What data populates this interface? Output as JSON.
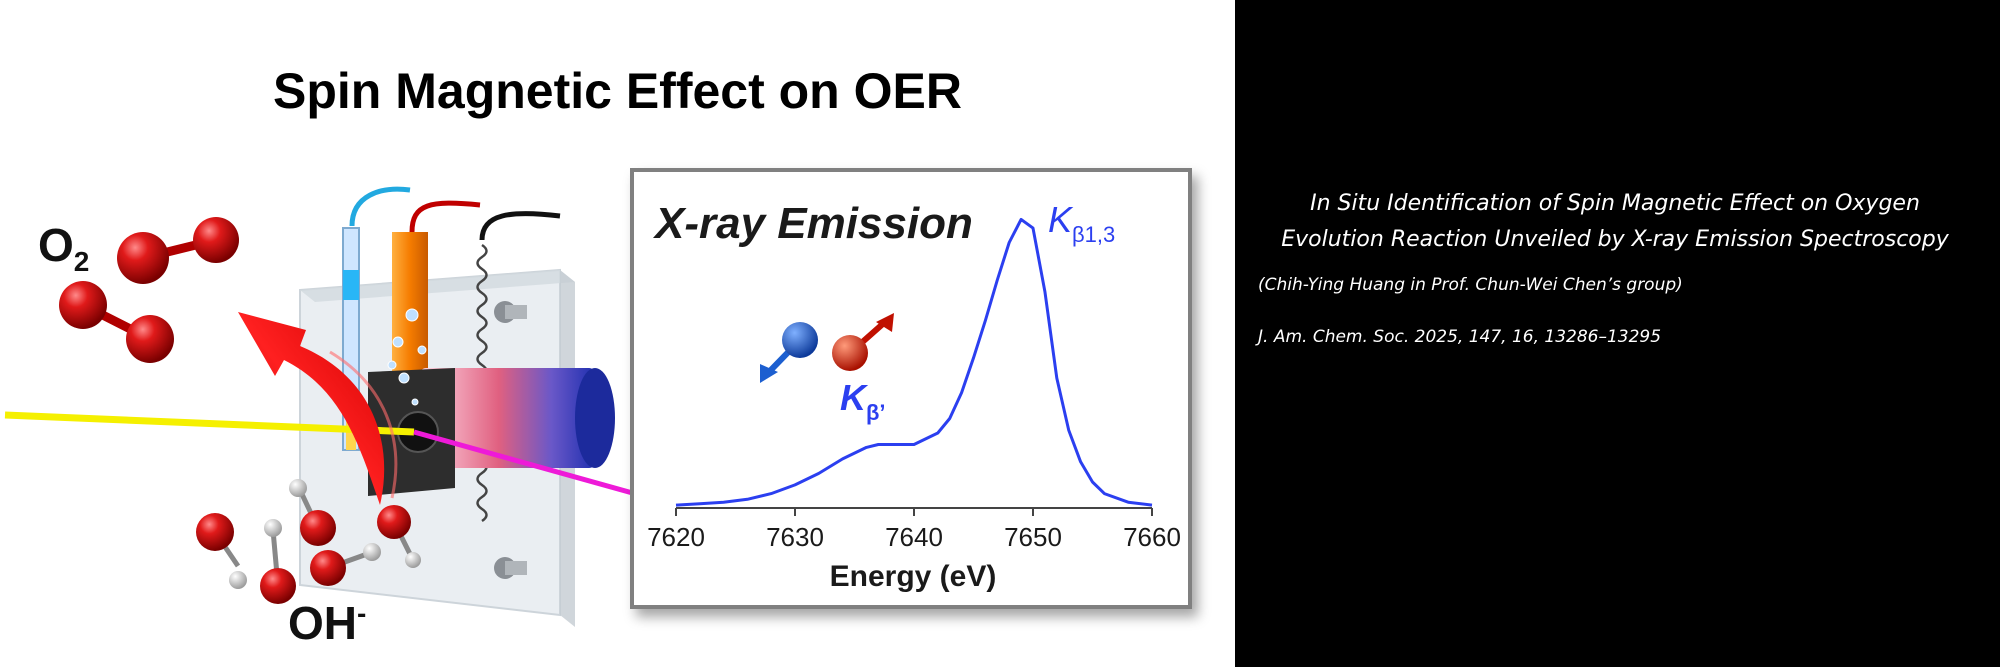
{
  "figure": {
    "title": "Spin Magnetic Effect on OER",
    "o2_label": "O",
    "o2_subscript": "2",
    "oh_label": "OH",
    "oh_superscript": "-"
  },
  "inset": {
    "title": "X-ray Emission",
    "peak_main": "K",
    "peak_main_subscript": "β1,3",
    "peak_satellite": "K",
    "peak_satellite_subscript": "β’"
  },
  "chart_data": {
    "type": "line",
    "title": "X-ray Emission",
    "xlabel": "Energy (eV)",
    "ylabel": "",
    "xlim": [
      7620,
      7660
    ],
    "ylim": [
      0,
      1.05
    ],
    "xticks": [
      7620,
      7630,
      7640,
      7650,
      7660
    ],
    "yticks_shown": false,
    "grid": false,
    "series": [
      {
        "color": "#2b3ff0",
        "x": [
          7620,
          7622,
          7624,
          7626,
          7628,
          7630,
          7632,
          7634,
          7636,
          7637,
          7638,
          7640,
          7642,
          7643,
          7644,
          7645,
          7646,
          7647,
          7648,
          7649,
          7650,
          7651,
          7652,
          7653,
          7654,
          7655,
          7656,
          7658,
          7660
        ],
        "y": [
          0.01,
          0.015,
          0.02,
          0.03,
          0.05,
          0.08,
          0.12,
          0.17,
          0.21,
          0.22,
          0.22,
          0.22,
          0.26,
          0.31,
          0.4,
          0.52,
          0.65,
          0.79,
          0.92,
          1.0,
          0.97,
          0.75,
          0.45,
          0.27,
          0.16,
          0.09,
          0.05,
          0.02,
          0.01
        ]
      }
    ],
    "annotations": [
      "Kβ1,3",
      "Kβ’"
    ]
  },
  "paper": {
    "title_line1": "In Situ Identification of Spin Magnetic Effect on Oxygen",
    "title_line2": "Evolution Reaction Unveiled by X-ray Emission Spectroscopy",
    "author": "(Chih-Ying Huang in Prof. Chun-Wei Chen’s group)",
    "citation": "J. Am. Chem. Soc. 2025, 147, 16, 13286–13295"
  },
  "colors": {
    "spectrum": "#2b3ff0",
    "label_blue": "#2b3ff0",
    "oxygen_red": "#d0121b",
    "arrow_red": "#e51818",
    "beam_yellow": "#f5f000",
    "beam_magenta": "#ee1ad8",
    "spin_blue": "#1c5fd0"
  },
  "icons": [
    "o2-molecule-icon",
    "oh-molecule-icon",
    "electrochemical-cell-icon",
    "spin-up-icon",
    "spin-down-icon"
  ]
}
